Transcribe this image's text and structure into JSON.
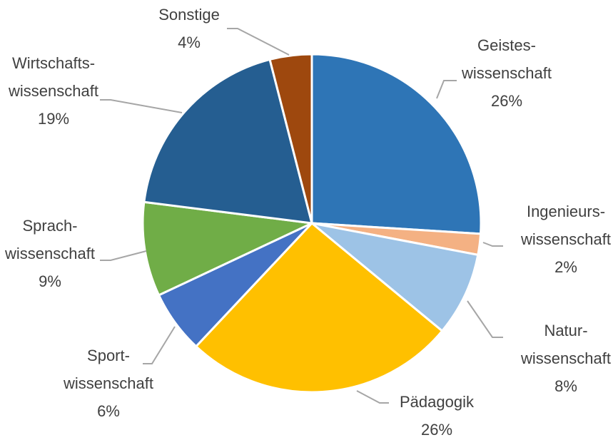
{
  "chart_data": {
    "type": "pie",
    "categories": [
      "Geistes-\nwissenschaft",
      "Ingenieurs-\nwissenschaft",
      "Natur-\nwissenschaft",
      "Pädagogik",
      "Sport-\nwissenschaft",
      "Sprach-\nwissenschaft",
      "Wirtschafts-\nwissenschaft",
      "Sonstige"
    ],
    "values": [
      26,
      2,
      8,
      26,
      6,
      9,
      19,
      4
    ],
    "value_labels": [
      "26%",
      "2%",
      "8%",
      "26%",
      "6%",
      "9%",
      "19%",
      "4%"
    ],
    "colors": [
      "#2e75b6",
      "#f4b183",
      "#9dc3e6",
      "#ffc000",
      "#4472c4",
      "#70ad47",
      "#255e91",
      "#9e480e"
    ]
  }
}
